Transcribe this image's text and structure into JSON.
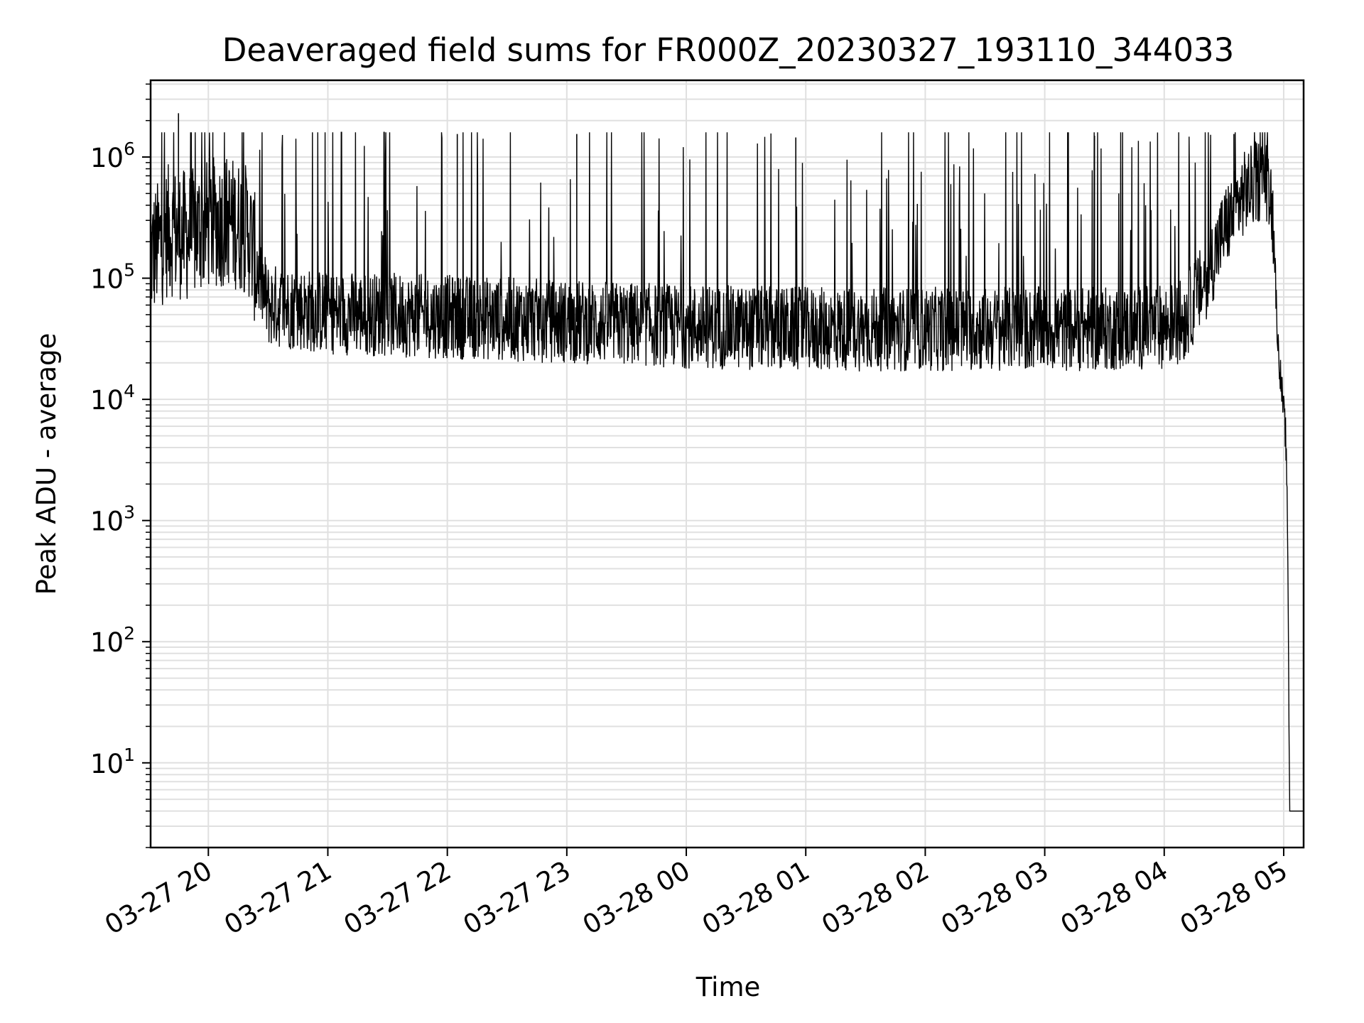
{
  "chart_data": {
    "type": "line",
    "title": "Deaveraged field sums for FR000Z_20230327_193110_344033",
    "xlabel": "Time",
    "ylabel": "Peak ADU - average",
    "yscale": "log",
    "xlim": [
      "03-27 19:31",
      "03-28 05:10"
    ],
    "ylim": [
      2,
      4300000
    ],
    "grid": true,
    "line_color": "#000000",
    "xticks": [
      "03-27 20",
      "03-27 21",
      "03-27 22",
      "03-27 23",
      "03-28 00",
      "03-28 01",
      "03-28 02",
      "03-28 03",
      "03-28 04",
      "03-28 05"
    ],
    "yticks": [
      {
        "base": "10",
        "exp": "1"
      },
      {
        "base": "10",
        "exp": "2"
      },
      {
        "base": "10",
        "exp": "3"
      },
      {
        "base": "10",
        "exp": "4"
      },
      {
        "base": "10",
        "exp": "5"
      },
      {
        "base": "10",
        "exp": "6"
      }
    ],
    "series": [
      {
        "points": [
          [
            "03-27 19:31",
            150000
          ],
          [
            "03-27 19:40",
            250000
          ],
          [
            "03-27 19:50",
            220000
          ],
          [
            "03-27 20:00",
            280000
          ],
          [
            "03-27 20:10",
            300000
          ],
          [
            "03-27 20:20",
            250000
          ],
          [
            "03-27 20:25",
            110000
          ],
          [
            "03-27 20:30",
            60000
          ],
          [
            "03-27 21:00",
            52000
          ],
          [
            "03-27 21:30",
            50000
          ],
          [
            "03-27 22:00",
            48000
          ],
          [
            "03-27 22:30",
            46000
          ],
          [
            "03-27 23:00",
            44000
          ],
          [
            "03-27 23:30",
            42000
          ],
          [
            "03-28 00:00",
            40000
          ],
          [
            "03-28 00:30",
            39000
          ],
          [
            "03-28 01:00",
            38000
          ],
          [
            "03-28 01:30",
            38000
          ],
          [
            "03-28 02:00",
            38000
          ],
          [
            "03-28 02:30",
            38000
          ],
          [
            "03-28 03:00",
            38000
          ],
          [
            "03-28 03:30",
            38000
          ],
          [
            "03-28 04:00",
            40000
          ],
          [
            "03-28 04:10",
            45000
          ],
          [
            "03-28 04:20",
            90000
          ],
          [
            "03-28 04:30",
            250000
          ],
          [
            "03-28 04:40",
            500000
          ],
          [
            "03-28 04:50",
            700000
          ],
          [
            "03-28 04:53",
            600000
          ],
          [
            "03-28 04:55",
            250000
          ],
          [
            "03-28 04:57",
            30000
          ],
          [
            "03-28 04:59",
            12000
          ],
          [
            "03-28 05:01",
            5000
          ],
          [
            "03-28 05:02",
            800
          ],
          [
            "03-28 05:03",
            4
          ],
          [
            "03-28 05:10",
            4
          ]
        ],
        "spike_peak_examples": [
          [
            "03-27 19:45",
            2300000
          ],
          [
            "03-27 22:05",
            1550000
          ],
          [
            "03-27 23:05",
            1550000
          ],
          [
            "03-28 00:55",
            1450000
          ],
          [
            "03-28 03:25",
            1500000
          ],
          [
            "03-28 04:35",
            1550000
          ]
        ]
      }
    ]
  }
}
